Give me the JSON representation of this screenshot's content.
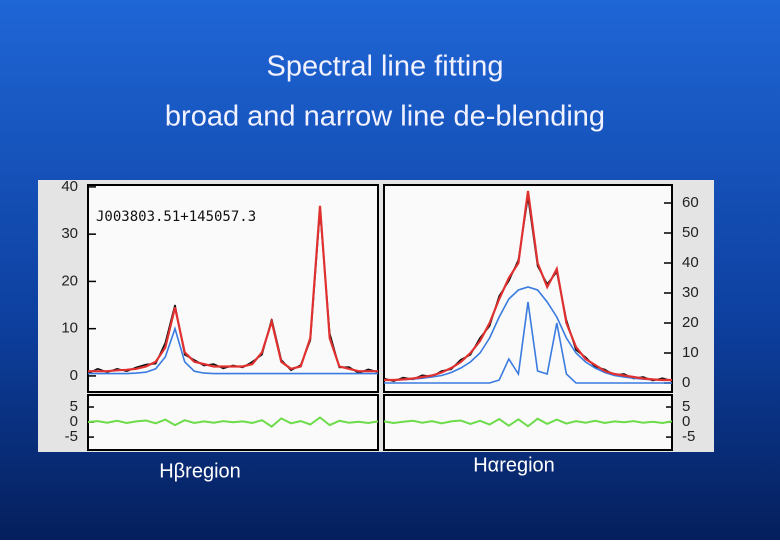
{
  "slide": {
    "title": [
      "Spectral line fitting",
      "broad and narrow line de-blending"
    ],
    "captions": [
      "Hβregion",
      "Hαregion"
    ]
  },
  "chart_data": [
    {
      "type": "line",
      "annotation": "J003803.51+145057.3",
      "yaxis": "left",
      "x": [
        0,
        1,
        2,
        3,
        4,
        5,
        6,
        7,
        8,
        9,
        10,
        11,
        12,
        13,
        14,
        15,
        16,
        17,
        18,
        19,
        20,
        21,
        22,
        23,
        24,
        25,
        26,
        27,
        28,
        29,
        30
      ],
      "ylim": [
        -3.4,
        40.4
      ],
      "yticks": [
        0,
        10,
        20,
        30,
        40
      ],
      "series": [
        {
          "color": "#111111",
          "values": [
            0.5,
            1.5,
            0.8,
            1.5,
            1,
            1.8,
            2.4,
            2.6,
            7,
            15,
            4.5,
            3.4,
            2.2,
            2.5,
            1.6,
            2.2,
            1.8,
            3,
            4.5,
            12,
            3.4,
            1.2,
            2.3,
            7.5,
            35,
            9,
            1.8,
            1.9,
            0.6,
            1.4,
            0.8
          ]
        },
        {
          "color": "#3a7be0",
          "values": [
            0.5,
            0.5,
            0.5,
            0.5,
            0.5,
            0.6,
            0.8,
            1.5,
            4,
            10,
            3,
            1,
            0.6,
            0.5,
            0.5,
            0.5,
            0.5,
            0.5,
            0.5,
            0.5,
            0.5,
            0.5,
            0.5,
            0.5,
            0.5,
            0.5,
            0.5,
            0.5,
            0.5,
            0.5,
            0.5
          ]
        },
        {
          "color": "#e03030",
          "values": [
            1,
            1,
            1,
            1.2,
            1.3,
            1.5,
            2,
            3,
            6,
            14.5,
            5,
            3,
            2.5,
            2,
            2,
            2,
            2,
            2.5,
            5,
            11.5,
            3,
            1.5,
            2,
            8,
            36,
            8,
            2,
            1.5,
            1,
            1,
            1
          ]
        }
      ],
      "residual": {
        "color": "#6ddc4a",
        "ylim": [
          -9.3,
          9
        ],
        "yticks": [
          -5,
          0,
          5
        ],
        "values": [
          0,
          0.3,
          -0.2,
          0.4,
          -0.3,
          0.2,
          0.5,
          -0.4,
          0.8,
          -1,
          0.6,
          -0.3,
          0.2,
          -0.2,
          0.3,
          -0.1,
          0.2,
          -0.3,
          0.6,
          -1.5,
          1.2,
          -0.4,
          0.3,
          -0.8,
          1.5,
          -1,
          0.4,
          -0.2,
          0.1,
          -0.3,
          0.2
        ]
      }
    },
    {
      "type": "line",
      "yaxis": "right",
      "x": [
        0,
        1,
        2,
        3,
        4,
        5,
        6,
        7,
        8,
        9,
        10,
        11,
        12,
        13,
        14,
        15,
        16,
        17,
        18,
        19,
        20,
        21,
        22,
        23,
        24,
        25,
        26,
        27,
        28,
        29,
        30
      ],
      "ylim": [
        -3,
        66
      ],
      "yticks": [
        0,
        10,
        20,
        30,
        40,
        50,
        60
      ],
      "series": [
        {
          "color": "#111111",
          "values": [
            1.5,
            0.6,
            1.8,
            1.2,
            2.6,
            2.1,
            4,
            4.6,
            7.8,
            9.4,
            15,
            19,
            29,
            34,
            41,
            62,
            39,
            33,
            37,
            21,
            11,
            8.6,
            5.4,
            4.5,
            2.6,
            3,
            1.5,
            2,
            0.8,
            1.6,
            0.7
          ]
        },
        {
          "color": "#3a7be0",
          "values": [
            1,
            1,
            1.1,
            1.3,
            1.6,
            2,
            2.5,
            3.5,
            5,
            7,
            10,
            15,
            22,
            28,
            31,
            32,
            31,
            27,
            22,
            15,
            10,
            7,
            5,
            3.5,
            2.5,
            2,
            1.6,
            1.3,
            1.1,
            1,
            1
          ]
        },
        {
          "color": "#3a7be0",
          "values": [
            0,
            0,
            0,
            0,
            0,
            0,
            0,
            0,
            0,
            0,
            0,
            0,
            1,
            8,
            3,
            27,
            4,
            3,
            20,
            3,
            0,
            0,
            0,
            0,
            0,
            0,
            0,
            0,
            0,
            0,
            0
          ]
        },
        {
          "color": "#e03030",
          "values": [
            1,
            1,
            1.2,
            1.5,
            2,
            2.5,
            3.5,
            5,
            7,
            10,
            14,
            20,
            28,
            35,
            40,
            64,
            40,
            32,
            38,
            20,
            12,
            8,
            6,
            4,
            3,
            2.5,
            2,
            1.5,
            1.2,
            1,
            1
          ]
        }
      ],
      "residual": {
        "color": "#6ddc4a",
        "ylim": [
          -9.3,
          9
        ],
        "yticks": [
          -5,
          0,
          5
        ],
        "values": [
          0.2,
          -0.3,
          0.1,
          0.4,
          -0.2,
          0.3,
          -0.4,
          0.2,
          0.5,
          -0.6,
          0.4,
          -0.8,
          1,
          -1.2,
          0.9,
          -1.4,
          1.1,
          -0.6,
          0.8,
          -0.5,
          0.3,
          -0.2,
          0.4,
          -0.3,
          0.2,
          -0.1,
          0.3,
          -0.2,
          0.1,
          -0.3,
          0.2
        ]
      }
    }
  ]
}
